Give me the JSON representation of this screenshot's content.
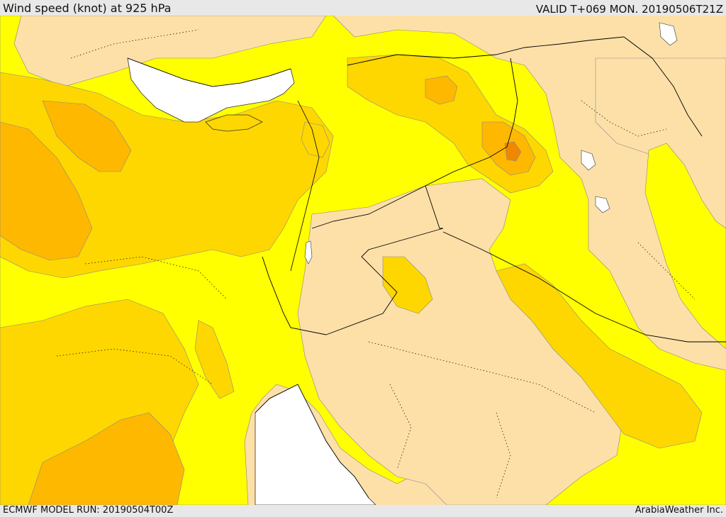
{
  "header": {
    "title": "Wind speed (knot) at 925 hPa",
    "valid_time": "VALID T+069 MON. 20190506T21Z"
  },
  "footer": {
    "model_run": "ECMWF MODEL RUN: 20190504T00Z",
    "credit": "ArabiaWeather Inc."
  },
  "map": {
    "variable": "wind speed",
    "units": "knot",
    "level": "925 hPa",
    "colors": {
      "land_low": "#fde0a8",
      "band_yellow": "#ffff00",
      "band_gold": "#ffd700",
      "band_orange": "#ffb800",
      "band_dark_orange": "#f5a000",
      "band_deep": "#ee8800",
      "water": "#ffffff",
      "borders": "#000000"
    }
  }
}
